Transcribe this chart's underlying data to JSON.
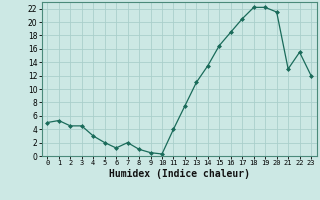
{
  "x": [
    0,
    1,
    2,
    3,
    4,
    5,
    6,
    7,
    8,
    9,
    10,
    11,
    12,
    13,
    14,
    15,
    16,
    17,
    18,
    19,
    20,
    21,
    22,
    23
  ],
  "y": [
    5.0,
    5.3,
    4.5,
    4.5,
    3.0,
    2.0,
    1.2,
    2.0,
    1.0,
    0.5,
    0.3,
    4.0,
    7.5,
    11.0,
    13.5,
    16.5,
    18.5,
    20.5,
    22.2,
    22.2,
    21.5,
    13.0,
    15.5,
    12.0
  ],
  "xlabel": "Humidex (Indice chaleur)",
  "line_color": "#1a6b5a",
  "marker_color": "#1a6b5a",
  "bg_color": "#cce8e4",
  "grid_color": "#aacfcb",
  "xlim": [
    -0.5,
    23.5
  ],
  "ylim": [
    0,
    23
  ],
  "xticks": [
    0,
    1,
    2,
    3,
    4,
    5,
    6,
    7,
    8,
    9,
    10,
    11,
    12,
    13,
    14,
    15,
    16,
    17,
    18,
    19,
    20,
    21,
    22,
    23
  ],
  "yticks": [
    0,
    2,
    4,
    6,
    8,
    10,
    12,
    14,
    16,
    18,
    20,
    22
  ]
}
